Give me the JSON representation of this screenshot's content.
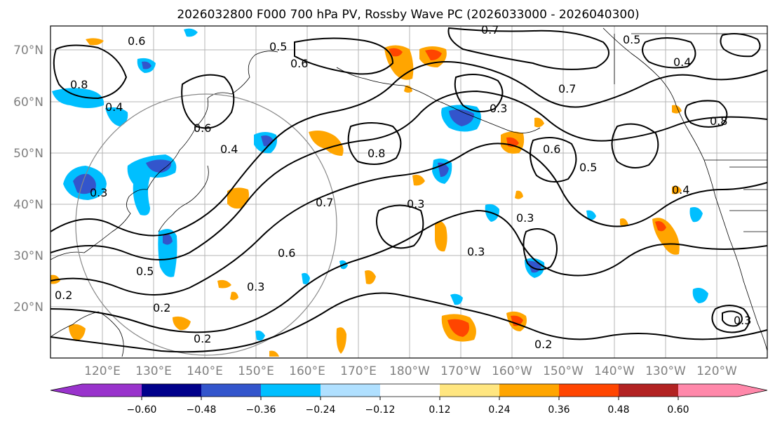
{
  "title": "2026032800 F000 700 hPa PV, Rossby Wave PC (2026033000 - 2026040300)",
  "latitude_labels": [
    "70°N",
    "60°N",
    "50°N",
    "40°N",
    "30°N",
    "20°N"
  ],
  "longitude_labels": [
    "120°E",
    "130°E",
    "140°E",
    "150°E",
    "160°E",
    "170°E",
    "180°W",
    "170°W",
    "160°W",
    "150°W",
    "140°W",
    "130°W",
    "120°W"
  ],
  "contour_labels": [
    "0.7",
    "0.6",
    "0.5",
    "0.4",
    "0.3",
    "0.8",
    "0.6",
    "0.7",
    "0.8",
    "0.3",
    "0.2",
    "0.2",
    "0.2",
    "0.2",
    "0.5",
    "0.6",
    "0.3",
    "0.4",
    "0.3",
    "0.3",
    "0.5",
    "0.4",
    "0.6",
    "0.7",
    "0.8",
    "0.4",
    "0.3",
    "0.5",
    "0.6",
    "0.3"
  ],
  "colorbar": {
    "tick_labels": [
      "−0.60",
      "−0.48",
      "−0.36",
      "−0.24",
      "−0.12",
      "0.12",
      "0.24",
      "0.36",
      "0.48",
      "0.60"
    ],
    "colors": [
      "#9933cc",
      "#00008b",
      "#3355cc",
      "#00bfff",
      "#b0e0ff",
      "#ffffff",
      "#ffe680",
      "#ffa500",
      "#ff4500",
      "#b22222",
      "#ff88aa"
    ]
  },
  "colors": {
    "negative_strong": "#3355cc",
    "negative_mid": "#00bfff",
    "negative_weak": "#b0e0ff",
    "positive_weak": "#ffe680",
    "positive_mid": "#ffa500",
    "positive_strong": "#ff4500",
    "positive_max": "#b22222"
  }
}
